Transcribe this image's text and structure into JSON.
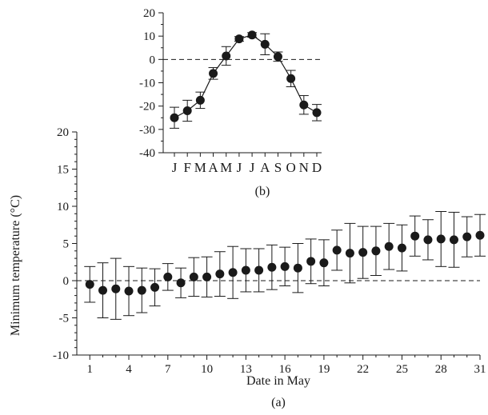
{
  "chart_data": [
    {
      "id": "main",
      "type": "scatter",
      "panel_label": "(a)",
      "title": "",
      "xlabel": "Date in May",
      "ylabel": "Minimum temperature (°C)",
      "xlim": [
        0,
        31
      ],
      "ylim": [
        -10,
        20
      ],
      "x_ticks": [
        1,
        4,
        7,
        10,
        13,
        16,
        19,
        22,
        25,
        28,
        31
      ],
      "y_ticks": [
        -10,
        -5,
        0,
        5,
        10,
        15,
        20
      ],
      "reference_line_y": 0,
      "grid": false,
      "x": [
        1,
        2,
        3,
        4,
        5,
        6,
        7,
        8,
        9,
        10,
        11,
        12,
        13,
        14,
        15,
        16,
        17,
        18,
        19,
        20,
        21,
        22,
        23,
        24,
        25,
        26,
        27,
        28,
        29,
        30,
        31
      ],
      "y": [
        -0.5,
        -1.3,
        -1.1,
        -1.4,
        -1.3,
        -0.9,
        0.5,
        -0.3,
        0.5,
        0.5,
        0.9,
        1.1,
        1.4,
        1.4,
        1.8,
        1.9,
        1.7,
        2.6,
        2.4,
        4.1,
        3.7,
        3.8,
        4.0,
        4.6,
        4.4,
        6.0,
        5.5,
        5.6,
        5.5,
        5.9,
        6.1
      ],
      "err": [
        2.4,
        3.7,
        4.1,
        3.3,
        3.0,
        2.5,
        1.8,
        2.0,
        2.6,
        2.7,
        3.0,
        3.5,
        2.9,
        2.9,
        3.0,
        2.6,
        3.3,
        3.0,
        3.1,
        2.7,
        4.0,
        3.5,
        3.3,
        3.1,
        3.1,
        2.7,
        2.7,
        3.7,
        3.7,
        2.7,
        2.8
      ],
      "marker_color": "#1a1a1a"
    },
    {
      "id": "inset",
      "type": "line",
      "panel_label": "(b)",
      "title": "",
      "xlabel": "",
      "ylabel": "",
      "categories": [
        "J",
        "F",
        "M",
        "A",
        "M",
        "J",
        "J",
        "A",
        "S",
        "O",
        "N",
        "D"
      ],
      "ylim": [
        -40,
        20
      ],
      "y_ticks": [
        -40,
        -30,
        -20,
        -10,
        0,
        10,
        20
      ],
      "reference_line_y": 0,
      "grid": false,
      "y": [
        -25,
        -22,
        -17.5,
        -6,
        1.5,
        8.8,
        10.5,
        6.5,
        1.2,
        -8.2,
        -19.5,
        -22.8
      ],
      "err": [
        4.5,
        4.5,
        3.5,
        2.5,
        4.0,
        1.0,
        1.0,
        4.5,
        2.0,
        3.5,
        4.0,
        3.5
      ],
      "marker_color": "#1a1a1a"
    }
  ]
}
